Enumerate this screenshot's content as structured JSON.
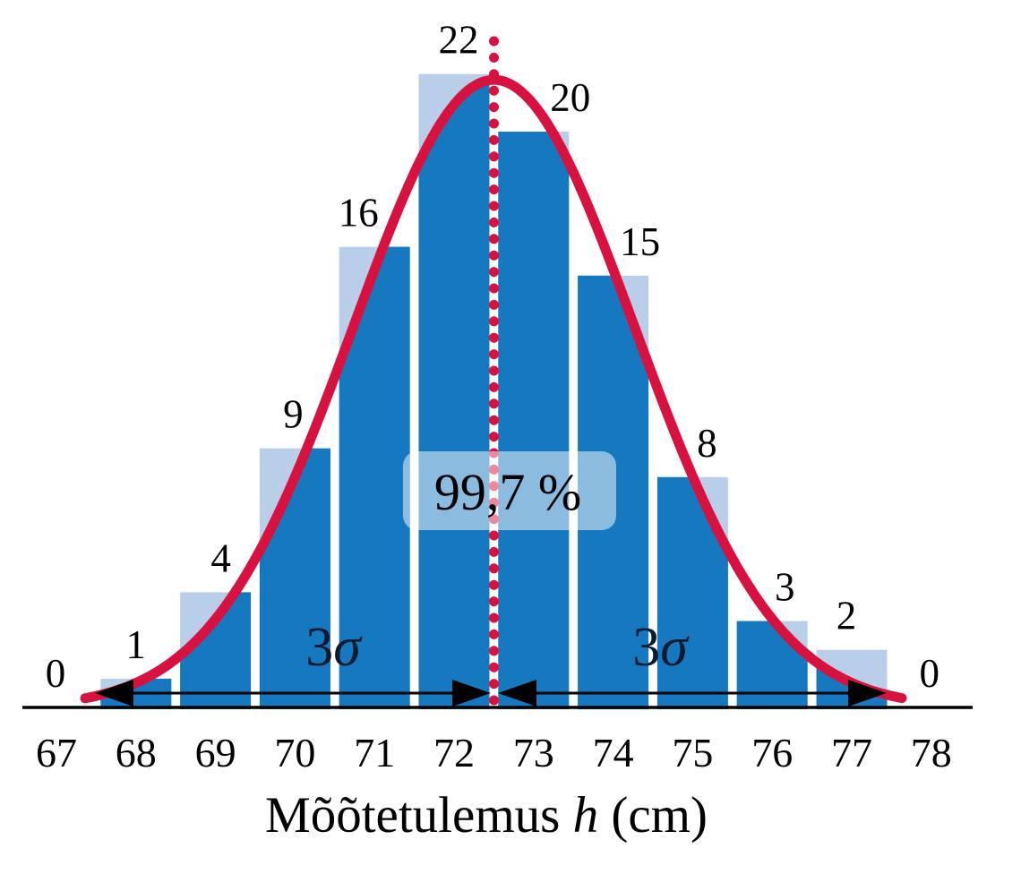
{
  "chart_data": {
    "type": "bar",
    "subtype": "histogram-with-normal-curve",
    "title": "",
    "xlabel": "Mõõtetulemus h (cm)",
    "xlabel_prefix": "Mõõtetulemus ",
    "xlabel_symbol": "h",
    "xlabel_suffix": " (cm)",
    "ylabel": "",
    "y_axis_shown": false,
    "grid": false,
    "legend": null,
    "categories": [
      67,
      68,
      69,
      70,
      71,
      72,
      73,
      74,
      75,
      76,
      77,
      78
    ],
    "values": [
      0,
      1,
      4,
      9,
      16,
      22,
      20,
      15,
      8,
      3,
      2,
      0
    ],
    "ylim": [
      0,
      22
    ],
    "annotations": {
      "coverage_label": "99,7 %",
      "mean_line_at": 72.5,
      "sigma_arrows": [
        {
          "label_prefix": "3",
          "label_symbol": "σ",
          "label": "3σ",
          "from": 67.5,
          "to": 72.5
        },
        {
          "label_prefix": "3",
          "label_symbol": "σ",
          "label": "3σ",
          "from": 72.5,
          "to": 77.5
        }
      ]
    },
    "colors": {
      "bar_fill": "#1679c0",
      "bar_above_curve": "#b9cfe9",
      "curve": "#d8123f",
      "mean_line": "#d8123f",
      "text": "#000000",
      "sigma_text": "#0a1a30",
      "axis": "#000000",
      "halo": "rgba(255,255,255,0.5)",
      "background": "#ffffff"
    }
  }
}
